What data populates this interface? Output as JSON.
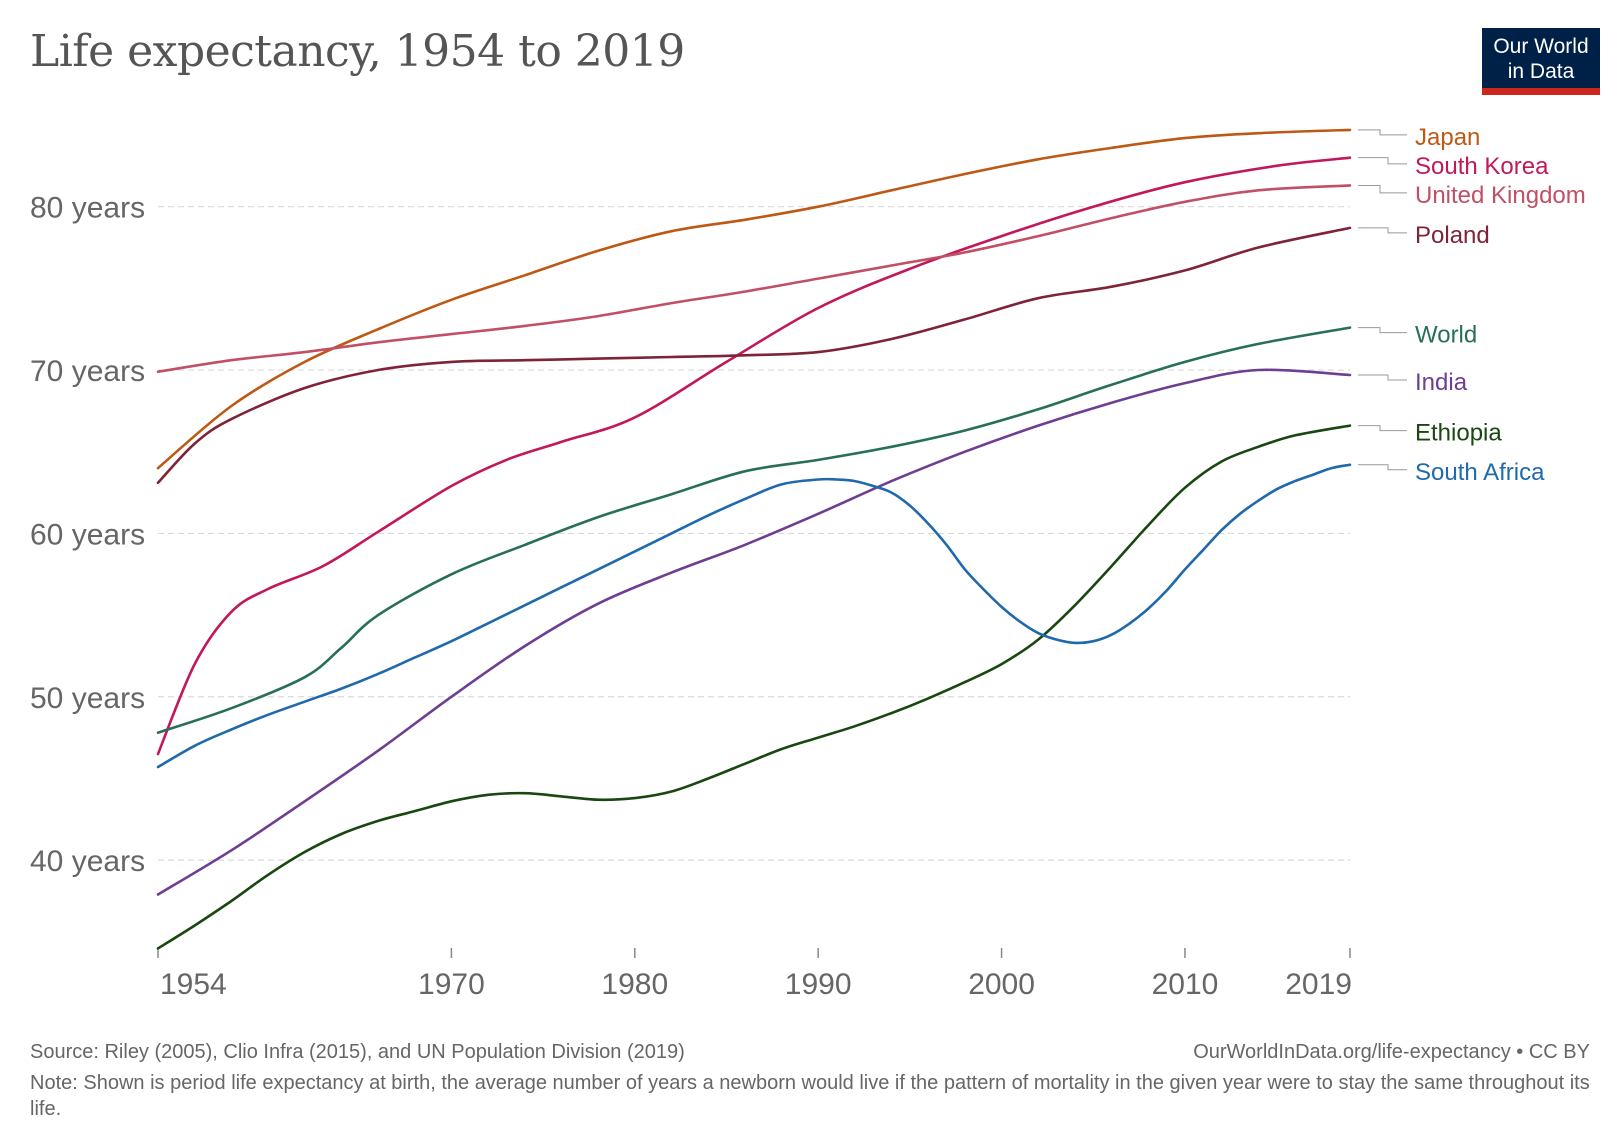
{
  "header": {
    "title": "Life expectancy, 1954 to 2019",
    "logo_line1": "Our World",
    "logo_line2": "in Data"
  },
  "footer": {
    "source": "Source: Riley (2005), Clio Infra (2015), and UN Population Division (2019)",
    "url": "OurWorldInData.org/life-expectancy • CC BY",
    "note": "Note: Shown is period life expectancy at birth, the average number of years a newborn would live if the pattern of mortality in the given year were to stay the same throughout its life."
  },
  "colors": {
    "gridline": "#d9d9d9",
    "axis_text": "#666666",
    "label_connector": "#999999"
  },
  "chart_data": {
    "type": "line",
    "title": "Life expectancy, 1954 to 2019",
    "xlabel": "",
    "ylabel": "",
    "xlim": [
      1954,
      2019
    ],
    "ylim": [
      34.5,
      85
    ],
    "x_ticks": [
      1954,
      1970,
      1980,
      1990,
      2000,
      2010,
      2019
    ],
    "y_ticks": [
      40,
      50,
      60,
      70,
      80
    ],
    "y_tick_labels": [
      "40 years",
      "50 years",
      "60 years",
      "70 years",
      "80 years"
    ],
    "grid": "horizontal dashed",
    "legend": "right (line-end labels)",
    "series": [
      {
        "name": "Japan",
        "color": "#be5915",
        "x": [
          1954,
          1958,
          1962,
          1966,
          1970,
          1974,
          1978,
          1982,
          1986,
          1990,
          1994,
          1998,
          2002,
          2006,
          2010,
          2014,
          2019
        ],
        "values": [
          64.0,
          67.8,
          70.5,
          72.5,
          74.3,
          75.8,
          77.3,
          78.5,
          79.2,
          80.0,
          81.0,
          82.0,
          82.9,
          83.6,
          84.2,
          84.5,
          84.7
        ]
      },
      {
        "name": "South Korea",
        "color": "#c2185b",
        "x": [
          1954,
          1956,
          1958,
          1960,
          1963,
          1966,
          1970,
          1973,
          1976,
          1980,
          1985,
          1990,
          1995,
          2000,
          2005,
          2010,
          2015,
          2019
        ],
        "values": [
          46.5,
          52.0,
          55.2,
          56.6,
          58.0,
          60.1,
          62.9,
          64.5,
          65.6,
          67.1,
          70.5,
          73.8,
          76.2,
          78.2,
          80.0,
          81.5,
          82.5,
          83.0
        ]
      },
      {
        "name": "United Kingdom",
        "color": "#c15065",
        "x": [
          1954,
          1958,
          1962,
          1966,
          1970,
          1974,
          1978,
          1982,
          1986,
          1990,
          1994,
          1998,
          2002,
          2006,
          2010,
          2014,
          2019
        ],
        "values": [
          69.9,
          70.6,
          71.1,
          71.7,
          72.2,
          72.7,
          73.3,
          74.1,
          74.8,
          75.6,
          76.4,
          77.2,
          78.2,
          79.3,
          80.3,
          81.0,
          81.3
        ]
      },
      {
        "name": "Poland",
        "color": "#7f2338",
        "x": [
          1954,
          1956,
          1958,
          1962,
          1966,
          1970,
          1974,
          1978,
          1982,
          1986,
          1990,
          1994,
          1998,
          2002,
          2006,
          2010,
          2014,
          2019
        ],
        "values": [
          63.1,
          65.5,
          67.0,
          68.9,
          70.0,
          70.5,
          70.6,
          70.7,
          70.8,
          70.9,
          71.1,
          71.9,
          73.1,
          74.4,
          75.1,
          76.1,
          77.5,
          78.7
        ]
      },
      {
        "name": "World",
        "color": "#286f57",
        "x": [
          1954,
          1958,
          1962,
          1964,
          1966,
          1970,
          1974,
          1978,
          1982,
          1986,
          1990,
          1994,
          1998,
          2002,
          2006,
          2010,
          2014,
          2019
        ],
        "values": [
          47.8,
          49.3,
          51.2,
          53.0,
          55.0,
          57.5,
          59.3,
          61.0,
          62.4,
          63.8,
          64.5,
          65.3,
          66.3,
          67.6,
          69.1,
          70.5,
          71.6,
          72.6
        ]
      },
      {
        "name": "India",
        "color": "#6d3e91",
        "x": [
          1954,
          1958,
          1962,
          1966,
          1970,
          1974,
          1978,
          1982,
          1986,
          1990,
          1994,
          1998,
          2002,
          2006,
          2010,
          2014,
          2019
        ],
        "values": [
          37.9,
          40.6,
          43.6,
          46.7,
          50.0,
          53.1,
          55.7,
          57.6,
          59.3,
          61.2,
          63.2,
          65.0,
          66.6,
          68.0,
          69.2,
          70.0,
          69.7
        ]
      },
      {
        "name": "Ethiopia",
        "color": "#18470f",
        "x": [
          1954,
          1956,
          1958,
          1960,
          1962,
          1964,
          1966,
          1968,
          1970,
          1972,
          1974,
          1976,
          1978,
          1980,
          1982,
          1984,
          1986,
          1988,
          1990,
          1992,
          1994,
          1996,
          1998,
          2000,
          2002,
          2004,
          2006,
          2008,
          2010,
          2012,
          2014,
          2016,
          2019
        ],
        "values": [
          34.6,
          36.0,
          37.5,
          39.1,
          40.5,
          41.6,
          42.4,
          43.0,
          43.6,
          44.0,
          44.1,
          43.9,
          43.7,
          43.8,
          44.2,
          45.0,
          45.9,
          46.8,
          47.5,
          48.2,
          49.0,
          49.9,
          50.9,
          52.0,
          53.5,
          55.6,
          58.0,
          60.5,
          62.8,
          64.4,
          65.3,
          66.0,
          66.6
        ]
      },
      {
        "name": "South Africa",
        "color": "#1f69ac",
        "x": [
          1954,
          1956,
          1958,
          1960,
          1962,
          1964,
          1966,
          1968,
          1970,
          1972,
          1974,
          1976,
          1978,
          1980,
          1982,
          1984,
          1986,
          1988,
          1990,
          1991,
          1992,
          1993,
          1994,
          1995,
          1996,
          1997,
          1998,
          1999,
          2000,
          2001,
          2002,
          2003,
          2004,
          2005,
          2006,
          2007,
          2008,
          2009,
          2010,
          2011,
          2012,
          2013,
          2014,
          2015,
          2016,
          2017,
          2018,
          2019
        ],
        "values": [
          45.7,
          47.0,
          48.0,
          48.9,
          49.7,
          50.5,
          51.4,
          52.4,
          53.4,
          54.5,
          55.6,
          56.7,
          57.8,
          58.9,
          60.0,
          61.1,
          62.1,
          63.0,
          63.3,
          63.3,
          63.2,
          62.9,
          62.5,
          61.7,
          60.6,
          59.3,
          57.8,
          56.6,
          55.5,
          54.6,
          53.9,
          53.5,
          53.3,
          53.4,
          53.8,
          54.5,
          55.4,
          56.5,
          57.8,
          59.0,
          60.2,
          61.2,
          62.0,
          62.7,
          63.2,
          63.6,
          64.0,
          64.2
        ]
      }
    ]
  }
}
